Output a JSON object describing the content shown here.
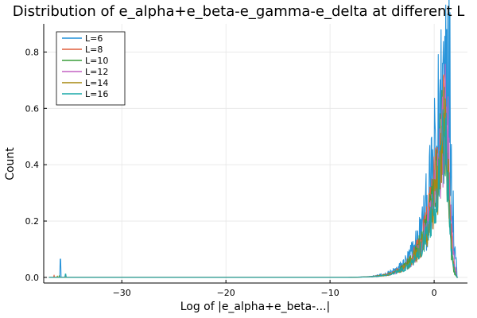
{
  "chart_data": {
    "type": "line",
    "title": "Distribution of e_alpha+e_beta-e_gamma-e_delta at different L",
    "xlabel": "Log of |e_alpha+e_beta-...|",
    "ylabel": "Count",
    "xlim": [
      -37.5,
      3.2
    ],
    "ylim": [
      -0.02,
      0.9
    ],
    "xticks": [
      -30,
      -20,
      -10,
      0
    ],
    "xtick_labels": [
      "−30",
      "−20",
      "−10",
      "0"
    ],
    "yticks": [
      0.0,
      0.2,
      0.4,
      0.6,
      0.8
    ],
    "ytick_labels": [
      "0.0",
      "0.2",
      "0.4",
      "0.6",
      "0.8"
    ],
    "grid": true,
    "legend_position": "top-left",
    "series": [
      {
        "name": "L=6",
        "color": "#1f8fd8",
        "peak_x": 1.2,
        "peak_y": 0.88,
        "outlier": {
          "x": -35.9,
          "y": 0.065
        }
      },
      {
        "name": "L=8",
        "color": "#e05e3c",
        "peak_x": 1.0,
        "peak_y": 0.63,
        "outlier": {
          "x": -36.5,
          "y": 0.008
        }
      },
      {
        "name": "L=10",
        "color": "#3a9e3a",
        "peak_x": 0.9,
        "peak_y": 0.55,
        "outlier": {
          "x": -36.0,
          "y": 0.006
        }
      },
      {
        "name": "L=12",
        "color": "#c462c4",
        "peak_x": 1.1,
        "peak_y": 0.58,
        "outlier": {
          "x": -35.4,
          "y": 0.006
        }
      },
      {
        "name": "L=14",
        "color": "#a6870f",
        "peak_x": 1.0,
        "peak_y": 0.52,
        "outlier": {
          "x": -36.2,
          "y": 0.005
        }
      },
      {
        "name": "L=16",
        "color": "#18a8a8",
        "peak_x": 1.0,
        "peak_y": 0.5,
        "outlier": {
          "x": -35.4,
          "y": 0.012
        }
      }
    ]
  }
}
